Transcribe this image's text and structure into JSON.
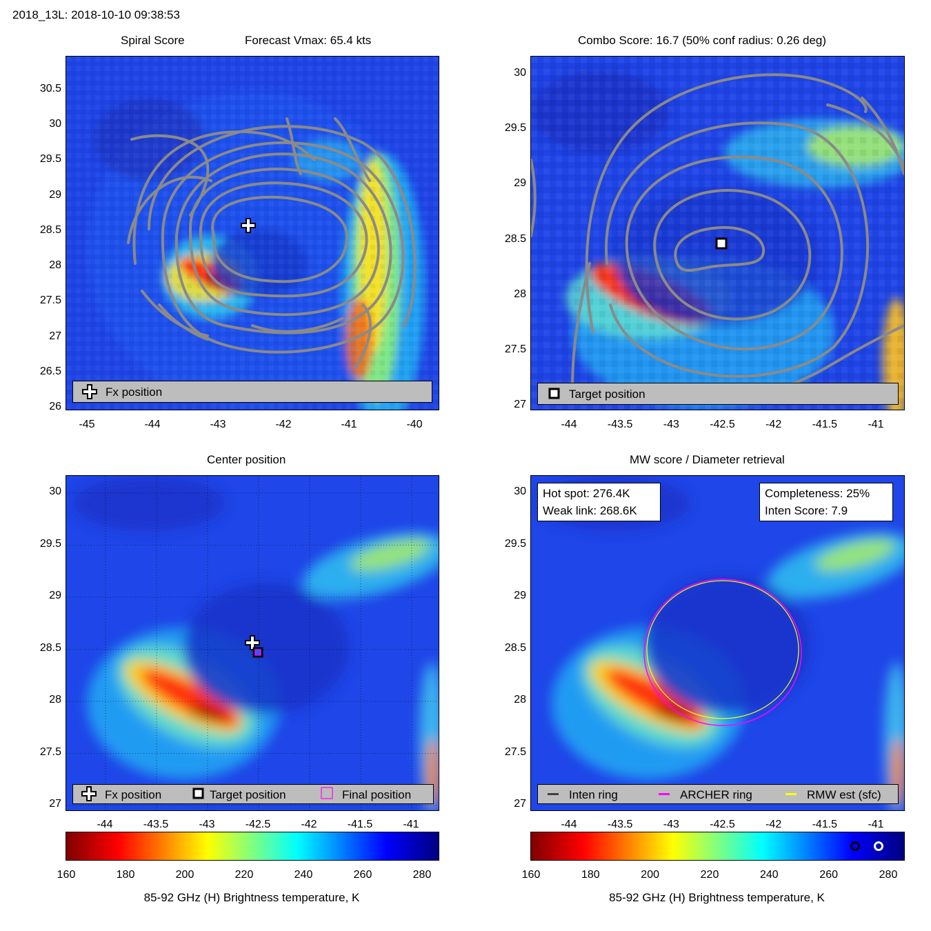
{
  "header": {
    "storm_time": "2018_13L: 2018-10-10 09:38:53"
  },
  "panels": {
    "spiral": {
      "title": "Spiral Score",
      "subtitle": "Forecast Vmax: 65.4 kts",
      "xticks": [
        "-45",
        "-44",
        "-43",
        "-42",
        "-41",
        "-40"
      ],
      "yticks": [
        "30.5",
        "30",
        "29.5",
        "29",
        "28.5",
        "28",
        "27.5",
        "27",
        "26.5",
        "26"
      ],
      "legend": {
        "fx_label": "Fx position"
      }
    },
    "combo": {
      "title": "Combo Score: 16.7  (50% conf radius: 0.26 deg)",
      "xticks": [
        "-44",
        "-43.5",
        "-43",
        "-42.5",
        "-42",
        "-41.5",
        "-41"
      ],
      "yticks": [
        "30",
        "29.5",
        "29",
        "28.5",
        "28",
        "27.5",
        "27"
      ],
      "legend": {
        "target_label": "Target position"
      }
    },
    "center": {
      "title": "Center position",
      "xticks": [
        "-44",
        "-43.5",
        "-43",
        "-42.5",
        "-42",
        "-41.5",
        "-41"
      ],
      "yticks": [
        "30",
        "29.5",
        "29",
        "28.5",
        "28",
        "27.5",
        "27"
      ],
      "legend": {
        "fx_label": "Fx position",
        "target_label": "Target position",
        "final_label": "Final position"
      }
    },
    "mw": {
      "title": "MW score / Diameter retrieval",
      "xticks": [
        "-44",
        "-43.5",
        "-43",
        "-42.5",
        "-42",
        "-41.5",
        "-41"
      ],
      "yticks": [
        "30",
        "29.5",
        "29",
        "28.5",
        "28",
        "27.5",
        "27"
      ],
      "info_left": {
        "hot_spot": "Hot spot: 276.4K",
        "weak_link": "Weak link: 268.6K"
      },
      "info_right": {
        "completeness": "Completeness: 25%",
        "inten_score": "Inten Score: 7.9"
      },
      "legend": {
        "inten_label": "Inten ring",
        "archer_label": "ARCHER ring",
        "rmw_label": "RMW est (sfc)"
      }
    }
  },
  "colorbar": {
    "ticks": [
      "160",
      "180",
      "200",
      "220",
      "240",
      "260",
      "280"
    ],
    "label": "85-92 GHz (H) Brightness temperature, K"
  },
  "colors": {
    "warm": "#800000",
    "cold": "#00007f",
    "contour": "#8a8a8a",
    "archer_ring": "#ff00ff",
    "rmw_ring": "#ffff00",
    "inten_ring": "#404040",
    "legend_bg": "#bdbdbd"
  },
  "chart_data": [
    {
      "type": "heatmap",
      "title": "Spiral Score",
      "subtitle": "Forecast Vmax: 65.4 kts",
      "xlim": [
        -45.3,
        -39.6
      ],
      "ylim": [
        26,
        31
      ],
      "fx_position": {
        "lon": -42.58,
        "lat": 28.58
      }
    },
    {
      "type": "heatmap",
      "title": "Combo Score: 16.7  (50% conf radius: 0.26 deg)",
      "xlim": [
        -44.4,
        -40.75
      ],
      "ylim": [
        27,
        30.2
      ],
      "target_position": {
        "lon": -42.48,
        "lat": 28.47
      }
    },
    {
      "type": "heatmap",
      "title": "Center position",
      "xlim": [
        -44.4,
        -40.75
      ],
      "ylim": [
        27,
        30.2
      ],
      "fx_position": {
        "lon": -42.55,
        "lat": 28.57
      },
      "target_position": {
        "lon": -42.48,
        "lat": 28.47
      },
      "final_position": {
        "lon": -42.48,
        "lat": 28.47
      }
    },
    {
      "type": "heatmap",
      "title": "MW score / Diameter retrieval",
      "xlim": [
        -44.4,
        -40.75
      ],
      "ylim": [
        27,
        30.2
      ],
      "archer_ring": {
        "lon": -42.5,
        "lat": 28.48,
        "radius_deg": 0.72
      },
      "rmw_ring": {
        "lon": -42.5,
        "lat": 28.47,
        "radius_deg": 0.68
      },
      "colorbar_range": [
        160,
        285
      ]
    }
  ]
}
